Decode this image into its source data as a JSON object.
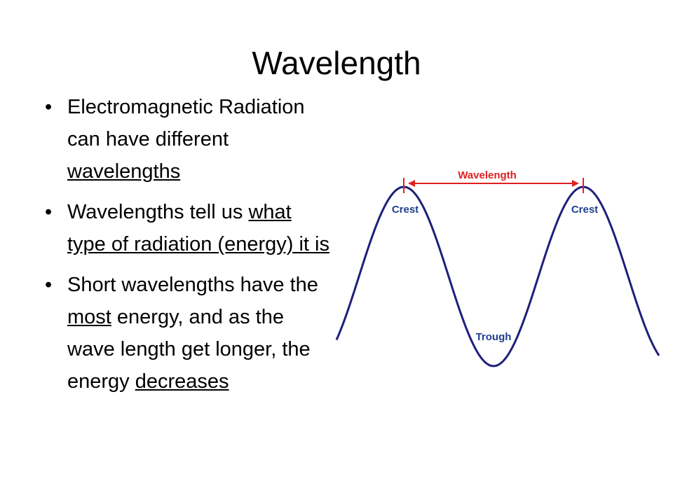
{
  "title": "Wavelength",
  "bullets": [
    [
      {
        "text": "Electromagnetic Radiation can have different ",
        "underline": false
      },
      {
        "text": "wavelengths",
        "underline": true
      }
    ],
    [
      {
        "text": "Wavelengths tell us ",
        "underline": false
      },
      {
        "text": "what type of radiation (energy) it is",
        "underline": true
      }
    ],
    [
      {
        "text": "Short wavelengths have the ",
        "underline": false
      },
      {
        "text": "most",
        "underline": true
      },
      {
        "text": " energy, and as the wave length get longer, the energy ",
        "underline": false
      },
      {
        "text": "decreases",
        "underline": true
      }
    ]
  ],
  "diagram": {
    "wavelength_label": "Wavelength",
    "crest_left": "Crest",
    "crest_right": "Crest",
    "trough": "Trough"
  }
}
